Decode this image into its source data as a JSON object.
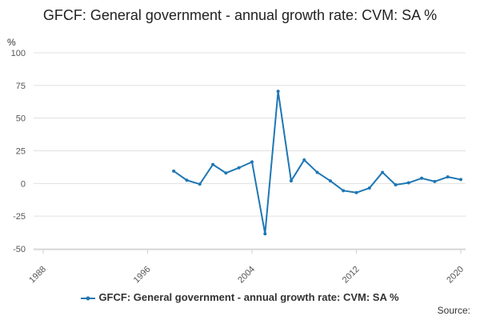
{
  "chart_data": {
    "type": "line",
    "title": "GFCF: General government - annual growth rate: CVM: SA %",
    "ylabel": "%",
    "xlabel": "",
    "ylim": [
      -50,
      100
    ],
    "xlim": [
      1988,
      2020
    ],
    "x_ticks": [
      1988,
      1996,
      2004,
      2012,
      2020
    ],
    "y_ticks": [
      100,
      75,
      50,
      25,
      0,
      -25,
      -50
    ],
    "grid": true,
    "legend_position": "bottom",
    "series": [
      {
        "name": "GFCF: General government - annual growth rate: CVM: SA %",
        "color": "#1f77b4",
        "points": [
          [
            1998,
            9.5
          ],
          [
            1999,
            2.5
          ],
          [
            2000,
            -0.5
          ],
          [
            2001,
            14.5
          ],
          [
            2002,
            8.0
          ],
          [
            2003,
            12.0
          ],
          [
            2004,
            16.5
          ],
          [
            2005,
            -38.5
          ],
          [
            2006,
            70.5
          ],
          [
            2007,
            2.0
          ],
          [
            2008,
            18.0
          ],
          [
            2009,
            8.5
          ],
          [
            2010,
            2.0
          ],
          [
            2011,
            -5.5
          ],
          [
            2012,
            -7.0
          ],
          [
            2013,
            -3.5
          ],
          [
            2014,
            8.5
          ],
          [
            2015,
            -1.0
          ],
          [
            2016,
            0.5
          ],
          [
            2017,
            4.0
          ],
          [
            2018,
            1.5
          ],
          [
            2019,
            5.0
          ],
          [
            2020,
            3.0
          ]
        ]
      }
    ]
  },
  "source_label": "Source:"
}
